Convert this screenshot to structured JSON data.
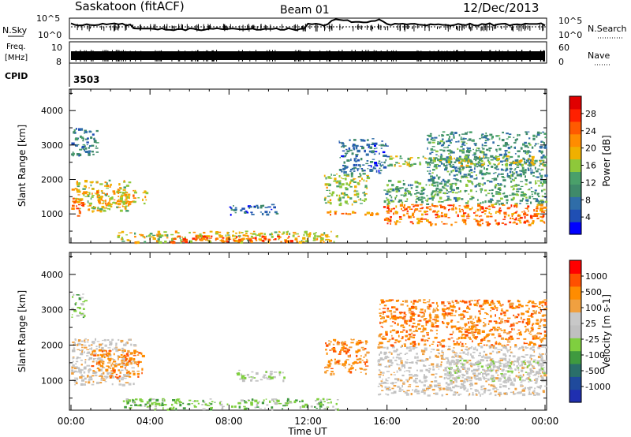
{
  "header": {
    "station": "Saskatoon (fitACF)",
    "beam": "Beam 01",
    "date": "12/Dec/2013"
  },
  "strip": {
    "nsky_label": "N.Sky",
    "nsky_ticks": [
      "10^5",
      "10^0"
    ],
    "nsearch_label": "N.Search",
    "nsearch_ticks": [
      "10^5",
      "10^0"
    ],
    "freq_label_1": "Freq.",
    "freq_label_2": "[MHz]",
    "freq_ticks": [
      "10",
      "8"
    ],
    "nave_label": "Nave",
    "nave_ticks": [
      "60",
      "0"
    ],
    "cpid_label": "CPID",
    "cpid_value": "3503"
  },
  "colors": {
    "power_scale": [
      "#0000ff",
      "#1f4fb4",
      "#2f6da8",
      "#3f8a6a",
      "#4aa06a",
      "#8ec83a",
      "#f0b000",
      "#ff8c00",
      "#ff5a00",
      "#ff2000",
      "#e00000"
    ],
    "velocity_scale": [
      "#1f2fb0",
      "#1f4a9c",
      "#2a6f6a",
      "#3f9a3f",
      "#7fcf3f",
      "#c0c0c0",
      "#c8c8c8",
      "#f0a040",
      "#ff8c00",
      "#ff5000",
      "#ff0000"
    ]
  },
  "chart_data": [
    {
      "type": "line",
      "panel": "noise",
      "ylabel": "N.Sky",
      "ylabel_right": "N.Search",
      "x_ticks": [
        "00:00",
        "04:00",
        "08:00",
        "12:00",
        "16:00",
        "20:00",
        "00:00"
      ]
    },
    {
      "type": "line",
      "panel": "frequency",
      "ylabel": "Freq. [MHz]",
      "ylabel_right": "Nave",
      "ylim": [
        8,
        10
      ],
      "ylim_right": [
        0,
        60
      ]
    },
    {
      "type": "heatmap",
      "panel": "power",
      "ylabel": "Slant Range [km]",
      "y_ticks": [
        "4000",
        "3000",
        "2000",
        "1000"
      ],
      "y_tick_values": [
        4000,
        3000,
        2000,
        1000
      ],
      "ylim": [
        180,
        4600
      ],
      "xlim": [
        0,
        24
      ],
      "colorbar_label": "Power [dB]",
      "colorbar_ticks": [
        "28",
        "24",
        "20",
        "16",
        "12",
        "8",
        "4"
      ],
      "colorbar_range": [
        0,
        32
      ],
      "regions": [
        {
          "x0": 0.0,
          "x1": 1.3,
          "y0": 2700,
          "y1": 3500,
          "v": 8
        },
        {
          "x0": 0.0,
          "x1": 2.9,
          "y0": 1100,
          "y1": 2000,
          "v": 18
        },
        {
          "x0": 0.0,
          "x1": 0.6,
          "y0": 950,
          "y1": 1500,
          "v": 26
        },
        {
          "x0": 1.0,
          "x1": 3.8,
          "y0": 1300,
          "y1": 1700,
          "v": 20
        },
        {
          "x0": 2.3,
          "x1": 13.5,
          "y0": 200,
          "y1": 520,
          "v": 18
        },
        {
          "x0": 5.0,
          "x1": 11.5,
          "y0": 200,
          "y1": 380,
          "v": 26
        },
        {
          "x0": 8.0,
          "x1": 10.4,
          "y0": 1000,
          "y1": 1300,
          "v": 6
        },
        {
          "x0": 12.8,
          "x1": 15.0,
          "y0": 1300,
          "y1": 2200,
          "v": 16
        },
        {
          "x0": 12.8,
          "x1": 15.5,
          "y0": 1000,
          "y1": 1100,
          "v": 22
        },
        {
          "x0": 13.5,
          "x1": 16.0,
          "y0": 2200,
          "y1": 3200,
          "v": 6
        },
        {
          "x0": 15.8,
          "x1": 24.0,
          "y0": 1300,
          "y1": 2000,
          "v": 12
        },
        {
          "x0": 15.8,
          "x1": 24.0,
          "y0": 700,
          "y1": 1300,
          "v": 24
        },
        {
          "x0": 18.0,
          "x1": 24.0,
          "y0": 2000,
          "y1": 3400,
          "v": 10
        },
        {
          "x0": 16.0,
          "x1": 24.0,
          "y0": 2400,
          "y1": 2700,
          "v": 16
        }
      ]
    },
    {
      "type": "heatmap",
      "panel": "velocity",
      "ylabel": "Slant Range [km]",
      "y_ticks": [
        "4000",
        "3000",
        "2000",
        "1000"
      ],
      "y_tick_values": [
        4000,
        3000,
        2000,
        1000
      ],
      "ylim": [
        180,
        4600
      ],
      "xlim": [
        0,
        24
      ],
      "xlabel": "Time UT",
      "colorbar_label": "Velocity [m s-1]",
      "colorbar_ticks": [
        "1000",
        "500",
        "100",
        "25",
        "-25",
        "-100",
        "-500",
        "-1000"
      ],
      "regions": [
        {
          "x0": 0.0,
          "x1": 0.7,
          "y0": 2800,
          "y1": 3500,
          "c": 4
        },
        {
          "x0": 0.0,
          "x1": 3.2,
          "y0": 900,
          "y1": 2200,
          "c": 6
        },
        {
          "x0": 1.0,
          "x1": 3.6,
          "y0": 1100,
          "y1": 1900,
          "c": 8
        },
        {
          "x0": 2.5,
          "x1": 13.5,
          "y0": 200,
          "y1": 500,
          "c": 4
        },
        {
          "x0": 8.3,
          "x1": 10.8,
          "y0": 1000,
          "y1": 1300,
          "c": 5
        },
        {
          "x0": 12.8,
          "x1": 15.0,
          "y0": 1200,
          "y1": 2200,
          "c": 8
        },
        {
          "x0": 15.5,
          "x1": 24.0,
          "y0": 600,
          "y1": 2000,
          "c": 6
        },
        {
          "x0": 15.5,
          "x1": 24.0,
          "y0": 2000,
          "y1": 3300,
          "c": 8
        },
        {
          "x0": 19.0,
          "x1": 24.0,
          "y0": 1000,
          "y1": 1600,
          "c": 5
        }
      ]
    }
  ]
}
